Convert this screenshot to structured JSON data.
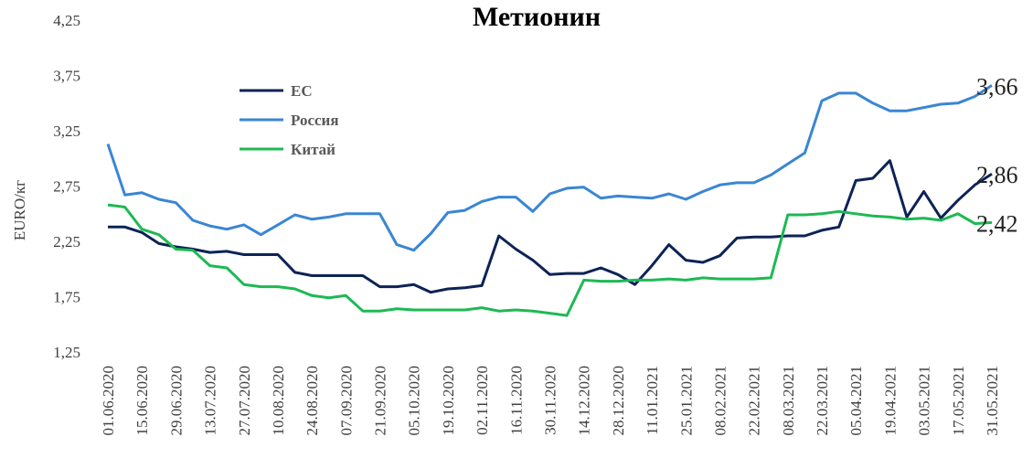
{
  "chart_data": {
    "type": "line",
    "title": "Метионин",
    "y_label": "EURO/кг",
    "categories": [
      "01.06.2020",
      null,
      "15.06.2020",
      null,
      "29.06.2020",
      null,
      "13.07.2020",
      null,
      "27.07.2020",
      null,
      "10.08.2020",
      null,
      "24.08.2020",
      null,
      "07.09.2020",
      null,
      "21.09.2020",
      null,
      "05.10.2020",
      null,
      "19.10.2020",
      null,
      "02.11.2020",
      null,
      "16.11.2020",
      null,
      "30.11.2020",
      null,
      "14.12.2020",
      null,
      "28.12.2020",
      null,
      "11.01.2021",
      null,
      "25.01.2021",
      null,
      "08.02.2021",
      null,
      "22.02.2021",
      null,
      "08.03.2021",
      null,
      "22.03.2021",
      null,
      "05.04.2021",
      null,
      "19.04.2021",
      null,
      "03.05.2021",
      null,
      "17.05.2021",
      null,
      "31.05.2021"
    ],
    "ylim": [
      1.25,
      4.25
    ],
    "yticks": [
      {
        "value": 1.25,
        "label": "1,25"
      },
      {
        "value": 1.75,
        "label": "1,75"
      },
      {
        "value": 2.25,
        "label": "2,25"
      },
      {
        "value": 2.75,
        "label": "2,75"
      },
      {
        "value": 3.25,
        "label": "3,25"
      },
      {
        "value": 3.75,
        "label": "3,75"
      },
      {
        "value": 4.25,
        "label": "4,25"
      }
    ],
    "grid": false,
    "legend": "upper left",
    "series": [
      {
        "name": "ЕС",
        "color": "#0d2356",
        "values": [
          2.38,
          2.38,
          2.33,
          2.23,
          2.2,
          2.18,
          2.15,
          2.16,
          2.13,
          2.13,
          2.13,
          1.97,
          1.94,
          1.94,
          1.94,
          1.94,
          1.84,
          1.84,
          1.86,
          1.79,
          1.82,
          1.83,
          1.85,
          2.3,
          2.18,
          2.08,
          1.95,
          1.96,
          1.96,
          2.01,
          1.95,
          1.86,
          2.03,
          2.22,
          2.08,
          2.06,
          2.12,
          2.28,
          2.29,
          2.29,
          2.3,
          2.3,
          2.35,
          2.38,
          2.8,
          2.82,
          2.98,
          2.47,
          2.7,
          2.46,
          2.62,
          2.76,
          2.86
        ],
        "value_labels": [
          null,
          null,
          null,
          null,
          null,
          null,
          null,
          null,
          null,
          null,
          null,
          null,
          null,
          null,
          null,
          null,
          null,
          null,
          null,
          null,
          null,
          null,
          null,
          null,
          null,
          null,
          null,
          null,
          null,
          null,
          null,
          null,
          null,
          null,
          null,
          null,
          null,
          null,
          null,
          null,
          null,
          null,
          null,
          null,
          null,
          null,
          null,
          null,
          null,
          null,
          null,
          null,
          "2,86"
        ]
      },
      {
        "name": "Россия",
        "color": "#3a86d4",
        "values": [
          3.13,
          2.67,
          2.69,
          2.63,
          2.6,
          2.44,
          2.39,
          2.36,
          2.4,
          2.31,
          2.4,
          2.49,
          2.45,
          2.47,
          2.5,
          2.5,
          2.5,
          2.22,
          2.17,
          2.32,
          2.51,
          2.53,
          2.61,
          2.65,
          2.65,
          2.52,
          2.68,
          2.73,
          2.74,
          2.64,
          2.66,
          2.65,
          2.64,
          2.68,
          2.63,
          2.7,
          2.76,
          2.78,
          2.78,
          2.85,
          2.95,
          3.05,
          3.52,
          3.59,
          3.59,
          3.5,
          3.43,
          3.43,
          3.46,
          3.49,
          3.5,
          3.56,
          3.66
        ],
        "value_labels": [
          null,
          null,
          null,
          null,
          null,
          null,
          null,
          null,
          null,
          null,
          null,
          null,
          null,
          null,
          null,
          null,
          null,
          null,
          null,
          null,
          null,
          null,
          null,
          null,
          null,
          null,
          null,
          null,
          null,
          null,
          null,
          null,
          null,
          null,
          null,
          null,
          null,
          null,
          null,
          null,
          null,
          null,
          null,
          null,
          null,
          null,
          null,
          null,
          null,
          null,
          null,
          null,
          "3,66"
        ]
      },
      {
        "name": "Китай",
        "color": "#1db954",
        "values": [
          2.58,
          2.56,
          2.36,
          2.31,
          2.18,
          2.17,
          2.03,
          2.01,
          1.86,
          1.84,
          1.84,
          1.82,
          1.76,
          1.74,
          1.76,
          1.62,
          1.62,
          1.64,
          1.63,
          1.63,
          1.63,
          1.63,
          1.65,
          1.62,
          1.63,
          1.62,
          1.6,
          1.58,
          1.9,
          1.89,
          1.89,
          1.9,
          1.9,
          1.91,
          1.9,
          1.92,
          1.91,
          1.91,
          1.91,
          1.92,
          2.49,
          2.49,
          2.5,
          2.52,
          2.5,
          2.48,
          2.47,
          2.45,
          2.46,
          2.44,
          2.5,
          2.41,
          2.42
        ],
        "value_labels": [
          null,
          null,
          null,
          null,
          null,
          null,
          null,
          null,
          null,
          null,
          null,
          null,
          null,
          null,
          null,
          null,
          null,
          null,
          null,
          null,
          null,
          null,
          null,
          null,
          null,
          null,
          null,
          null,
          null,
          null,
          null,
          null,
          null,
          null,
          null,
          null,
          null,
          null,
          null,
          null,
          null,
          null,
          null,
          null,
          null,
          null,
          null,
          null,
          null,
          null,
          null,
          null,
          "2,42"
        ]
      }
    ]
  }
}
